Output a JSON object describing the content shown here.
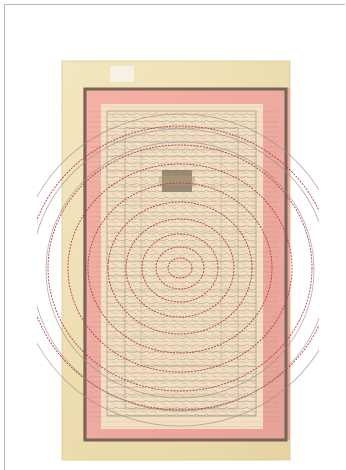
{
  "viewer": {
    "frame_color": "#b9b9b9"
  },
  "document": {
    "paper_color": "#f3e5bd",
    "border_panel_color": "#efaaa0",
    "outer_frame_color": "#766555",
    "ink_color": "#77705e",
    "spiral_color": "#c23c4c",
    "label_color": "#f7f1e7"
  }
}
